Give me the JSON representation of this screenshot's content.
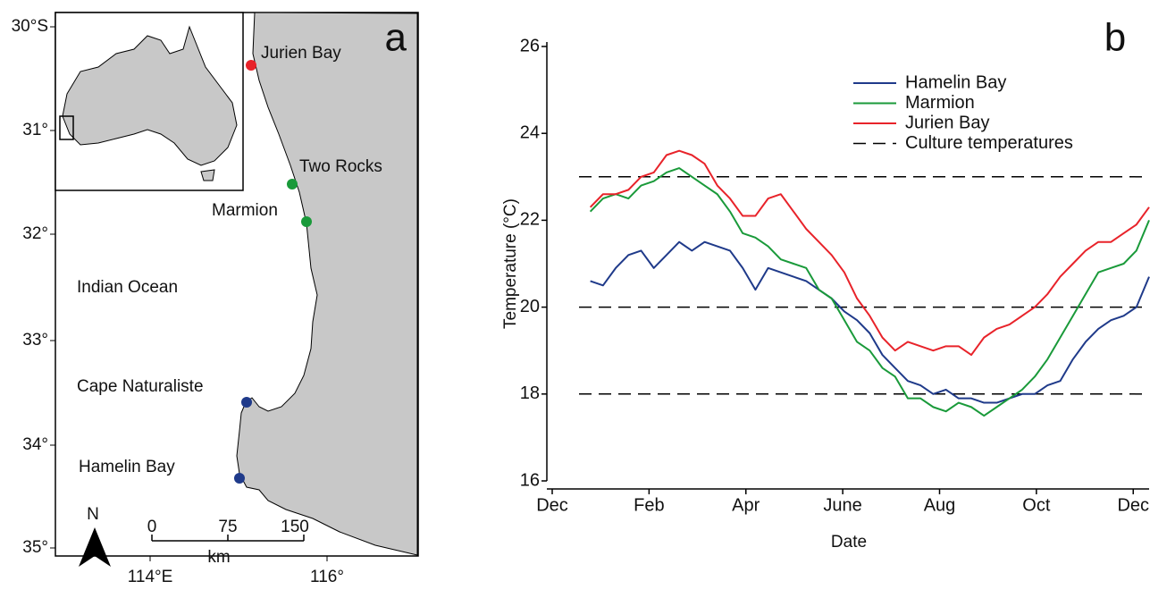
{
  "map": {
    "panel_label": "a",
    "lat_labels": [
      "30°S",
      "31°",
      "32°",
      "33°",
      "34°",
      "35°"
    ],
    "lon_labels": [
      "114°E",
      "116°"
    ],
    "places": [
      "Jurien Bay",
      "Two Rocks",
      "Marmion",
      "Cape Naturaliste",
      "Hamelin Bay"
    ],
    "ocean_label": "Indian Ocean",
    "scale": {
      "ticks": [
        "0",
        "75",
        "150"
      ],
      "unit": "km"
    },
    "north": "N"
  },
  "chart_data": {
    "type": "line",
    "panel_label": "b",
    "x_label": "Date",
    "y_label": "Temperature (°C)",
    "x": [
      24,
      32,
      40,
      48,
      56,
      64,
      72,
      80,
      88,
      96,
      104,
      112,
      120,
      128,
      136,
      144,
      152,
      160,
      168,
      176,
      184,
      192,
      200,
      208,
      216,
      224,
      232,
      240,
      248,
      256,
      264,
      272,
      280,
      288,
      296,
      304,
      312,
      320,
      328,
      336,
      344,
      352,
      360,
      368,
      376
    ],
    "series": [
      {
        "name": "Hamelin Bay",
        "color": "#1f3a8a",
        "values": [
          20.6,
          20.5,
          20.9,
          21.2,
          21.3,
          20.9,
          21.2,
          21.5,
          21.3,
          21.5,
          21.4,
          21.3,
          20.9,
          20.4,
          20.9,
          20.8,
          20.7,
          20.6,
          20.4,
          20.2,
          19.9,
          19.7,
          19.4,
          18.9,
          18.6,
          18.3,
          18.2,
          18.0,
          18.1,
          17.9,
          17.9,
          17.8,
          17.8,
          17.9,
          18.0,
          18.0,
          18.2,
          18.3,
          18.8,
          19.2,
          19.5,
          19.7,
          19.8,
          20.0,
          20.7
        ]
      },
      {
        "name": "Marmion",
        "color": "#1a9a3a",
        "values": [
          22.2,
          22.5,
          22.6,
          22.5,
          22.8,
          22.9,
          23.1,
          23.2,
          23.0,
          22.8,
          22.6,
          22.2,
          21.7,
          21.6,
          21.4,
          21.1,
          21.0,
          20.9,
          20.4,
          20.2,
          19.7,
          19.2,
          19.0,
          18.6,
          18.4,
          17.9,
          17.9,
          17.7,
          17.6,
          17.8,
          17.7,
          17.5,
          17.7,
          17.9,
          18.1,
          18.4,
          18.8,
          19.3,
          19.8,
          20.3,
          20.8,
          20.9,
          21.0,
          21.3,
          22.0
        ]
      },
      {
        "name": "Jurien Bay",
        "color": "#e8232a",
        "values": [
          22.3,
          22.6,
          22.6,
          22.7,
          23.0,
          23.1,
          23.5,
          23.6,
          23.5,
          23.3,
          22.8,
          22.5,
          22.1,
          22.1,
          22.5,
          22.6,
          22.2,
          21.8,
          21.5,
          21.2,
          20.8,
          20.2,
          19.8,
          19.3,
          19.0,
          19.2,
          19.1,
          19.0,
          19.1,
          19.1,
          18.9,
          19.3,
          19.5,
          19.6,
          19.8,
          20.0,
          20.3,
          20.7,
          21.0,
          21.3,
          21.5,
          21.5,
          21.7,
          21.9,
          22.3
        ]
      }
    ],
    "reference_lines": {
      "name": "Culture temperatures",
      "values": [
        18,
        20,
        23
      ]
    },
    "xlim": [
      0,
      376
    ],
    "xticks": [
      {
        "value": 0,
        "label": "Dec"
      },
      {
        "value": 61,
        "label": "Feb"
      },
      {
        "value": 122,
        "label": "Apr"
      },
      {
        "value": 183,
        "label": "June"
      },
      {
        "value": 244,
        "label": "Aug"
      },
      {
        "value": 305,
        "label": "Oct"
      },
      {
        "value": 366,
        "label": "Dec"
      }
    ],
    "ylim": [
      16,
      26
    ],
    "yticks": [
      16,
      18,
      20,
      22,
      24,
      26
    ],
    "legend": "top-right"
  }
}
